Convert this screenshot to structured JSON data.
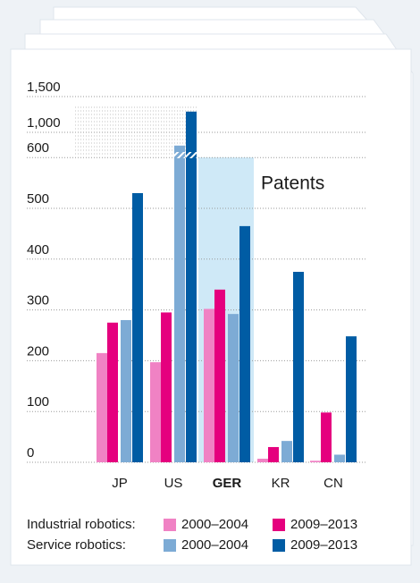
{
  "chart_data": {
    "type": "bar",
    "categories": [
      "JP",
      "US",
      "GER",
      "KR",
      "CN"
    ],
    "highlight_category": "GER",
    "annotation": "Patents",
    "ylim": [
      0,
      1500
    ],
    "yticks": [
      0,
      100,
      200,
      300,
      400,
      500,
      600,
      {
        "value": 1000,
        "label": "1,000"
      },
      {
        "value": 1500,
        "label": "1,500"
      }
    ],
    "grid": true,
    "groups": [
      {
        "label": "Industrial robotics:",
        "series": [
          {
            "name": "2000–2004",
            "color": "#f082c4",
            "values": [
              215,
              197,
              302,
              7,
              3
            ]
          },
          {
            "name": "2009–2013",
            "color": "#e5007e",
            "values": [
              275,
              295,
              340,
              30,
              98
            ]
          }
        ]
      },
      {
        "label": "Service robotics:",
        "series": [
          {
            "name": "2000–2004",
            "color": "#7dabd5",
            "values": [
              280,
              790,
              292,
              42,
              15
            ]
          },
          {
            "name": "2009–2013",
            "color": "#005ca4",
            "values": [
              530,
              1290,
              465,
              375,
              248
            ]
          }
        ]
      }
    ]
  }
}
